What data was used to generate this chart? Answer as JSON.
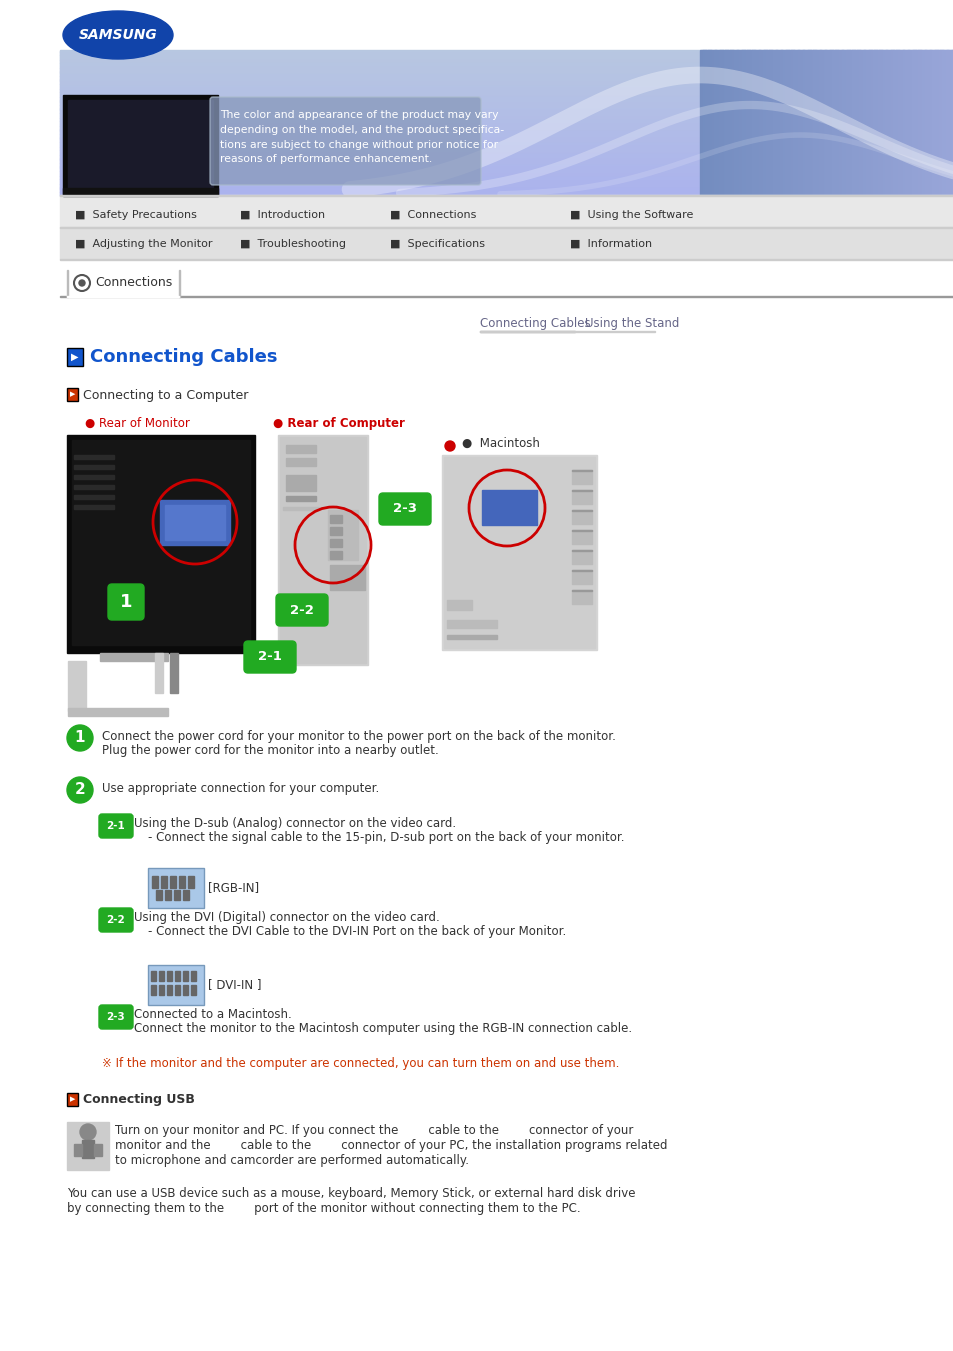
{
  "bg_color": "#ffffff",
  "nav_items_row1": [
    "Safety Precautions",
    "Introduction",
    "Connections",
    "Using the Software"
  ],
  "nav_items_row2": [
    "Adjusting the Monitor",
    "Troubleshooting",
    "Specifications",
    "Information"
  ],
  "tab_title": "Connections",
  "subtab1": "Connecting Cables",
  "subtab2": "Using the Stand",
  "section_title": "Connecting Cables",
  "subsection_title": "Connecting to a Computer",
  "step1_text1": "Connect the power cord for your monitor to the power port on the back of the monitor.",
  "step1_text2": "Plug the power cord for the monitor into a nearby outlet.",
  "step2_text": "Use appropriate connection for your computer.",
  "step21_title": "Using the D-sub (Analog) connector on the video card.",
  "step21_sub": "- Connect the signal cable to the 15-pin, D-sub port on the back of your monitor.",
  "step22_title": "Using the DVI (Digital) connector on the video card.",
  "step22_sub": "- Connect the DVI Cable to the DVI-IN Port on the back of your Monitor.",
  "step23_title": "Connected to a Macintosh.",
  "step23_sub": "Connect the monitor to the Macintosh computer using the RGB-IN connection cable.",
  "note_text": "※ If the monitor and the computer are connected, you can turn them on and use them.",
  "usb_title": "Connecting USB",
  "usb_line1": "Turn on your monitor and PC. If you connect the        cable to the        connector of your",
  "usb_line2": "monitor and the        cable to the        connector of your PC, the installation programs related",
  "usb_line3": "to microphone and camcorder are performed automatically.",
  "usb_line4": "You can use a USB device such as a mouse, keyboard, Memory Stick, or external hard disk drive",
  "usb_line5": "by connecting them to the        port of the monitor without connecting them to the PC.",
  "header_disclaimer": "The color and appearance of the product may vary\ndepending on the model, and the product specifica-\ntions are subject to change without prior notice for\nreasons of performance enhancement.",
  "label_rear_monitor": "● Rear of Monitor",
  "label_rear_computer": "● Rear of Computer",
  "label_macintosh": "●  Macintosh",
  "label_rgb_in": "[RGB-IN]",
  "label_dvi_in": "[ DVI-IN ]"
}
